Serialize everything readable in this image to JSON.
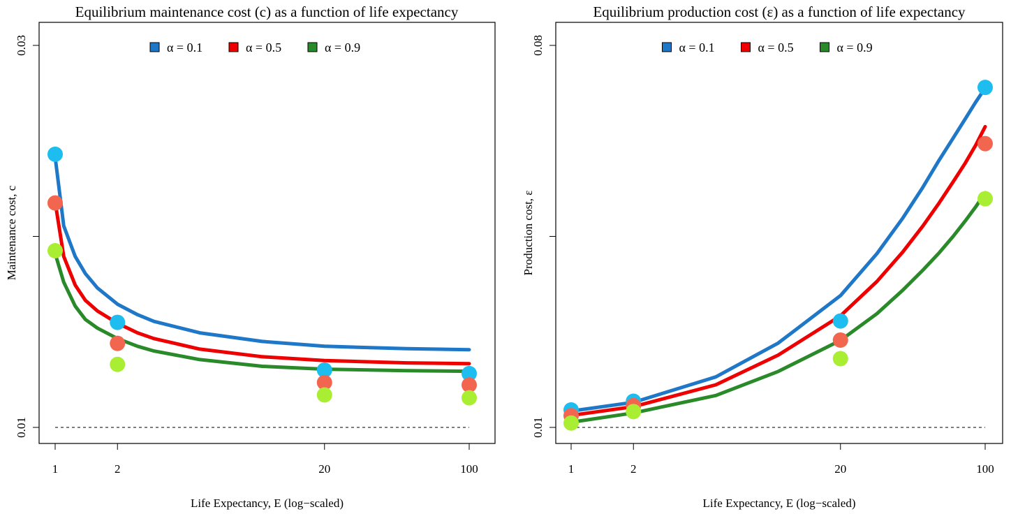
{
  "chart_data": [
    {
      "type": "line",
      "title": "Equilibrium maintenance cost (c) as a function of life expectancy",
      "xlabel": "Life Expectancy, E (log−scaled)",
      "ylabel": "Maintenance cost, c",
      "x_scale": "log",
      "xlim": [
        1,
        100
      ],
      "ylim": [
        0.01,
        0.03
      ],
      "x_ticks": [
        1,
        2,
        20,
        100
      ],
      "y_ticks": [
        0.01,
        0.02,
        0.03
      ],
      "y_tick_labels": [
        "0.01",
        "",
        "0.03"
      ],
      "legend": {
        "placement": "top",
        "orientation": "horizontal"
      },
      "reference_line": {
        "y": 0.01,
        "style": "dashed"
      },
      "series": [
        {
          "name": "α = 0.1",
          "line_color": "#1f77c8",
          "point_color": "#1ebdf0",
          "x": [
            1,
            1.1,
            1.25,
            1.4,
            1.6,
            2,
            2.5,
            3,
            5,
            10,
            20,
            50,
            100
          ],
          "y": [
            0.02415,
            0.02055,
            0.01895,
            0.01805,
            0.0173,
            0.01645,
            0.0159,
            0.01555,
            0.01495,
            0.0145,
            0.01425,
            0.01412,
            0.01407
          ],
          "points_x": [
            1,
            2,
            20,
            100
          ],
          "points_y": [
            0.0243,
            0.0155,
            0.013,
            0.01282
          ]
        },
        {
          "name": "α = 0.5",
          "line_color": "#ee0000",
          "point_color": "#f26650",
          "x": [
            1,
            1.1,
            1.25,
            1.4,
            1.6,
            2,
            2.5,
            3,
            5,
            10,
            20,
            50,
            100
          ],
          "y": [
            0.0218,
            0.01895,
            0.01745,
            0.01665,
            0.0161,
            0.01545,
            0.01495,
            0.01465,
            0.0141,
            0.0137,
            0.0135,
            0.01338,
            0.01334
          ],
          "points_x": [
            1,
            2,
            20,
            100
          ],
          "points_y": [
            0.02175,
            0.0144,
            0.01235,
            0.01222
          ]
        },
        {
          "name": "α = 0.9",
          "line_color": "#2a8a2a",
          "point_color": "#aaee33",
          "x": [
            1,
            1.1,
            1.25,
            1.4,
            1.6,
            2,
            2.5,
            3,
            5,
            10,
            20,
            50,
            100
          ],
          "y": [
            0.0191,
            0.0176,
            0.01635,
            0.01565,
            0.0152,
            0.01465,
            0.01425,
            0.014,
            0.01355,
            0.0132,
            0.01305,
            0.01297,
            0.01294
          ],
          "points_x": [
            1,
            2,
            20,
            100
          ],
          "points_y": [
            0.01925,
            0.0133,
            0.0117,
            0.01155
          ]
        }
      ]
    },
    {
      "type": "line",
      "title": "Equilibrium production cost (ε) as a function of life expectancy",
      "xlabel": "Life Expectancy, E (log−scaled)",
      "ylabel": "Production cost, ε",
      "x_scale": "log",
      "xlim": [
        1,
        100
      ],
      "ylim": [
        0.01,
        0.08
      ],
      "x_ticks": [
        1,
        2,
        20,
        100
      ],
      "y_ticks": [
        0.01,
        0.045,
        0.08
      ],
      "y_tick_labels": [
        "0.01",
        "",
        "0.08"
      ],
      "legend": {
        "placement": "top",
        "orientation": "horizontal"
      },
      "reference_line": {
        "y": 0.01,
        "style": "dashed"
      },
      "series": [
        {
          "name": "α = 0.1",
          "line_color": "#1f77c8",
          "point_color": "#1ebdf0",
          "x": [
            1,
            2,
            5,
            10,
            20,
            30,
            40,
            50,
            60,
            70,
            80,
            90,
            100
          ],
          "y": [
            0.013,
            0.0146,
            0.01925,
            0.02545,
            0.03415,
            0.04185,
            0.04835,
            0.054,
            0.059,
            0.063,
            0.0665,
            0.0696,
            0.0722
          ],
          "points_x": [
            1,
            2,
            20,
            100
          ],
          "points_y": [
            0.0132,
            0.0148,
            0.0295,
            0.0723
          ]
        },
        {
          "name": "α = 0.5",
          "line_color": "#ee0000",
          "point_color": "#f26650",
          "x": [
            1,
            2,
            5,
            10,
            20,
            30,
            40,
            50,
            60,
            70,
            80,
            90,
            100
          ],
          "y": [
            0.0122,
            0.0138,
            0.0178,
            0.02325,
            0.03045,
            0.03675,
            0.04215,
            0.0469,
            0.05115,
            0.055,
            0.0584,
            0.0617,
            0.0651
          ],
          "points_x": [
            1,
            2,
            20,
            100
          ],
          "points_y": [
            0.01215,
            0.014,
            0.026,
            0.062
          ]
        },
        {
          "name": "α = 0.9",
          "line_color": "#2a8a2a",
          "point_color": "#aaee33",
          "x": [
            1,
            2,
            5,
            10,
            20,
            30,
            40,
            50,
            60,
            70,
            80,
            90,
            100
          ],
          "y": [
            0.01095,
            0.01265,
            0.01585,
            0.02025,
            0.02595,
            0.03085,
            0.03515,
            0.0388,
            0.042,
            0.045,
            0.0478,
            0.0504,
            0.053
          ],
          "points_x": [
            1,
            2,
            20,
            100
          ],
          "points_y": [
            0.0108,
            0.0129,
            0.0226,
            0.0519
          ]
        }
      ]
    }
  ]
}
